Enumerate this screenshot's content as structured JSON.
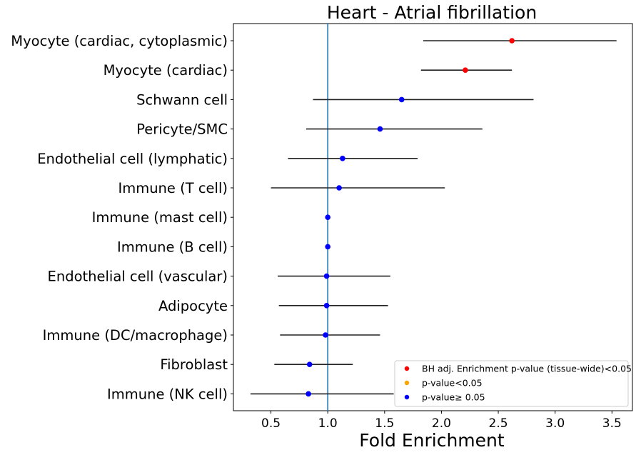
{
  "chart_data": {
    "type": "scatter",
    "title": "Heart - Atrial fibrillation",
    "xlabel": "Fold Enrichment",
    "ylabel": "",
    "xlim": [
      0.17,
      3.68
    ],
    "xticks": [
      "0.5",
      "1.0",
      "1.5",
      "2.0",
      "2.5",
      "3.0",
      "3.5"
    ],
    "reference_line": {
      "x": 1.0,
      "color": "#1f77b4"
    },
    "grid": false,
    "legend_position": "bottom-right",
    "categories": [
      "Myocyte (cardiac, cytoplasmic)",
      "Myocyte (cardiac)",
      "Schwann cell",
      "Pericyte/SMC",
      "Endothelial cell (lymphatic)",
      "Immune (T cell)",
      "Immune (mast cell)",
      "Immune (B cell)",
      "Endothelial cell (vascular)",
      "Adipocyte",
      "Immune (DC/macrophage)",
      "Fibroblast",
      "Immune (NK cell)"
    ],
    "points": [
      {
        "category": "Myocyte (cardiac, cytoplasmic)",
        "value": 2.62,
        "ci_low": 1.84,
        "ci_high": 3.54,
        "group": "BH adj. Enrichment p-value (tissue-wide)<0.05"
      },
      {
        "category": "Myocyte (cardiac)",
        "value": 2.21,
        "ci_low": 1.82,
        "ci_high": 2.62,
        "group": "BH adj. Enrichment p-value (tissue-wide)<0.05"
      },
      {
        "category": "Schwann cell",
        "value": 1.65,
        "ci_low": 0.87,
        "ci_high": 2.81,
        "group": "p-value≥0.05"
      },
      {
        "category": "Pericyte/SMC",
        "value": 1.46,
        "ci_low": 0.81,
        "ci_high": 2.36,
        "group": "p-value≥0.05"
      },
      {
        "category": "Endothelial cell (lymphatic)",
        "value": 1.13,
        "ci_low": 0.65,
        "ci_high": 1.79,
        "group": "p-value≥0.05"
      },
      {
        "category": "Immune (T cell)",
        "value": 1.1,
        "ci_low": 0.5,
        "ci_high": 2.03,
        "group": "p-value≥0.05"
      },
      {
        "category": "Immune (mast cell)",
        "value": 1.0,
        "ci_low": 0.98,
        "ci_high": 1.01,
        "group": "p-value≥0.05"
      },
      {
        "category": "Immune (B cell)",
        "value": 1.0,
        "ci_low": 0.98,
        "ci_high": 1.01,
        "group": "p-value≥0.05"
      },
      {
        "category": "Endothelial cell (vascular)",
        "value": 0.99,
        "ci_low": 0.56,
        "ci_high": 1.55,
        "group": "p-value≥0.05"
      },
      {
        "category": "Adipocyte",
        "value": 0.99,
        "ci_low": 0.57,
        "ci_high": 1.53,
        "group": "p-value≥0.05"
      },
      {
        "category": "Immune (DC/macrophage)",
        "value": 0.98,
        "ci_low": 0.58,
        "ci_high": 1.46,
        "group": "p-value≥0.05"
      },
      {
        "category": "Fibroblast",
        "value": 0.84,
        "ci_low": 0.53,
        "ci_high": 1.22,
        "group": "p-value≥0.05"
      },
      {
        "category": "Immune (NK cell)",
        "value": 0.83,
        "ci_low": 0.32,
        "ci_high": 1.58,
        "group": "p-value≥0.05"
      }
    ],
    "legend": [
      {
        "label": "BH adj. Enrichment p-value (tissue-wide)<0.05",
        "color": "#ff0000"
      },
      {
        "label": "p-value<0.05",
        "color": "#ffa500"
      },
      {
        "label": "p-value≥ 0.05",
        "color": "#0000ff"
      }
    ]
  }
}
